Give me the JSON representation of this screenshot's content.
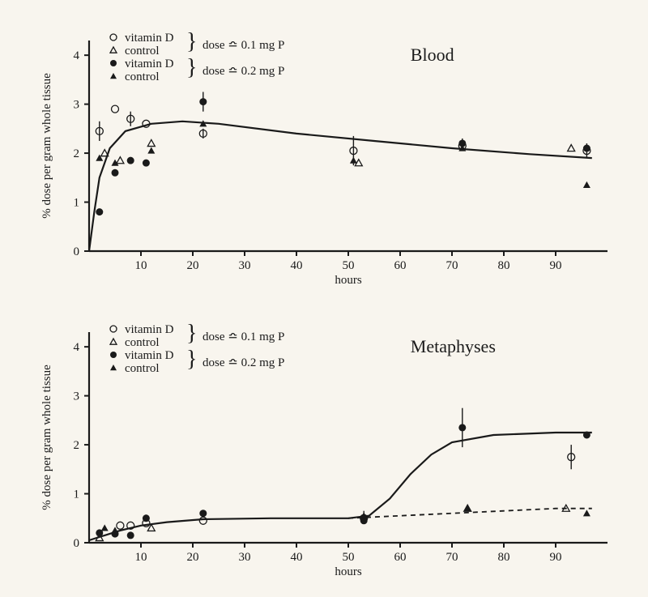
{
  "colors": {
    "ink": "#1a1a1a",
    "bg": "#f8f5ee"
  },
  "legend": {
    "items": [
      {
        "marker": "open-circle",
        "label": "vitamin D",
        "doseGroup": 0
      },
      {
        "marker": "open-triangle",
        "label": "control",
        "doseGroup": 0
      },
      {
        "marker": "filled-circle",
        "label": "vitamin D",
        "doseGroup": 1
      },
      {
        "marker": "filled-triangle",
        "label": "control",
        "doseGroup": 1
      }
    ],
    "doses": [
      "dose ≏ 0.1 mg  P",
      "dose ≏ 0.2 mg  P"
    ]
  },
  "charts": [
    {
      "title": "Blood",
      "ylabel": "% dose per gram whole tissue",
      "xlabel": "hours",
      "xlim": [
        0,
        100
      ],
      "ylim": [
        0,
        4.3
      ],
      "xticks": [
        10,
        20,
        30,
        40,
        50,
        60,
        70,
        80,
        90
      ],
      "yticks": [
        0,
        1,
        2,
        3,
        4
      ],
      "curve": [
        [
          0,
          0
        ],
        [
          1,
          0.8
        ],
        [
          2,
          1.5
        ],
        [
          4,
          2.1
        ],
        [
          7,
          2.45
        ],
        [
          12,
          2.6
        ],
        [
          18,
          2.65
        ],
        [
          25,
          2.6
        ],
        [
          40,
          2.4
        ],
        [
          55,
          2.25
        ],
        [
          70,
          2.1
        ],
        [
          85,
          1.98
        ],
        [
          97,
          1.9
        ]
      ],
      "series": {
        "open-circle": [
          [
            2,
            2.45,
            0.2
          ],
          [
            5,
            2.9,
            0
          ],
          [
            8,
            2.7,
            0.15
          ],
          [
            11,
            2.6,
            0
          ],
          [
            22,
            2.4,
            0.1
          ],
          [
            51,
            2.05,
            0.3
          ],
          [
            72,
            2.15,
            0
          ],
          [
            96,
            2.05,
            0.15
          ]
        ],
        "open-triangle": [
          [
            3,
            2.0,
            0
          ],
          [
            6,
            1.85,
            0
          ],
          [
            12,
            2.2,
            0
          ],
          [
            52,
            1.8,
            0
          ],
          [
            93,
            2.1,
            0
          ]
        ],
        "filled-circle": [
          [
            2,
            0.8,
            0
          ],
          [
            5,
            1.6,
            0
          ],
          [
            8,
            1.85,
            0
          ],
          [
            11,
            1.8,
            0
          ],
          [
            22,
            3.05,
            0.2
          ],
          [
            72,
            2.2,
            0.1
          ],
          [
            96,
            2.1,
            0
          ]
        ],
        "filled-triangle": [
          [
            2,
            1.9,
            0
          ],
          [
            5,
            1.8,
            0
          ],
          [
            12,
            2.05,
            0
          ],
          [
            22,
            2.6,
            0
          ],
          [
            51,
            1.85,
            0
          ],
          [
            72,
            2.1,
            0
          ],
          [
            96,
            1.35,
            0
          ]
        ]
      }
    },
    {
      "title": "Metaphyses",
      "ylabel": "% dose per gram whole tissue",
      "xlabel": "hours",
      "xlim": [
        0,
        100
      ],
      "ylim": [
        0,
        4.3
      ],
      "xticks": [
        10,
        20,
        30,
        40,
        50,
        60,
        70,
        80,
        90
      ],
      "yticks": [
        0,
        1,
        2,
        3,
        4
      ],
      "curve": [
        [
          0,
          0.05
        ],
        [
          3,
          0.15
        ],
        [
          6,
          0.25
        ],
        [
          10,
          0.35
        ],
        [
          15,
          0.42
        ],
        [
          22,
          0.48
        ],
        [
          35,
          0.5
        ],
        [
          50,
          0.5
        ],
        [
          54,
          0.55
        ],
        [
          58,
          0.9
        ],
        [
          62,
          1.4
        ],
        [
          66,
          1.8
        ],
        [
          70,
          2.05
        ],
        [
          78,
          2.2
        ],
        [
          90,
          2.25
        ],
        [
          97,
          2.25
        ]
      ],
      "dashed": [
        [
          50,
          0.5
        ],
        [
          60,
          0.55
        ],
        [
          70,
          0.6
        ],
        [
          80,
          0.65
        ],
        [
          90,
          0.7
        ],
        [
          97,
          0.7
        ]
      ],
      "series": {
        "open-circle": [
          [
            6,
            0.35,
            0
          ],
          [
            8,
            0.35,
            0
          ],
          [
            11,
            0.4,
            0
          ],
          [
            22,
            0.45,
            0
          ],
          [
            53,
            0.5,
            0
          ],
          [
            93,
            1.75,
            0.25
          ]
        ],
        "open-triangle": [
          [
            2,
            0.1,
            0
          ],
          [
            12,
            0.3,
            0
          ],
          [
            73,
            0.7,
            0
          ],
          [
            92,
            0.7,
            0
          ]
        ],
        "filled-circle": [
          [
            2,
            0.2,
            0
          ],
          [
            5,
            0.18,
            0
          ],
          [
            8,
            0.15,
            0
          ],
          [
            11,
            0.5,
            0
          ],
          [
            22,
            0.6,
            0
          ],
          [
            53,
            0.45,
            0
          ],
          [
            72,
            2.35,
            0.4
          ],
          [
            96,
            2.2,
            0
          ]
        ],
        "filled-triangle": [
          [
            3,
            0.3,
            0
          ],
          [
            5,
            0.25,
            0
          ],
          [
            53,
            0.55,
            0.1
          ],
          [
            73,
            0.7,
            0
          ],
          [
            96,
            0.6,
            0
          ]
        ]
      }
    }
  ]
}
